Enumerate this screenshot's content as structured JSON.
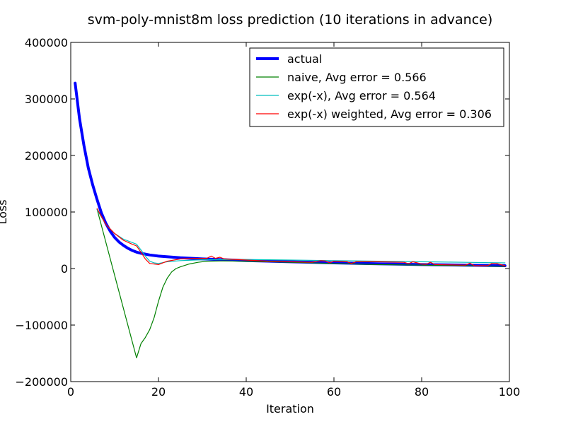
{
  "chart_data": {
    "type": "line",
    "title": "svm-poly-mnist8m loss prediction (10 iterations in advance)",
    "xlabel": "Iteration",
    "ylabel": "Loss",
    "xlim": [
      0,
      100
    ],
    "ylim": [
      -200000,
      400000
    ],
    "x_ticks": [
      0,
      20,
      40,
      60,
      80,
      100
    ],
    "y_ticks": [
      -200000,
      -100000,
      0,
      100000,
      200000,
      300000,
      400000
    ],
    "x_tick_labels": [
      "0",
      "20",
      "40",
      "60",
      "80",
      "100"
    ],
    "y_tick_labels": [
      "−200000",
      "−100000",
      "0",
      "100000",
      "200000",
      "300000",
      "400000"
    ],
    "grid": false,
    "legend_position": "top-right",
    "series": [
      {
        "name": "actual",
        "color": "#0000ff",
        "x": [
          1,
          2,
          3,
          4,
          5,
          6,
          7,
          8,
          9,
          10,
          11,
          12,
          13,
          14,
          15,
          16,
          18,
          20,
          25,
          30,
          40,
          50,
          60,
          70,
          80,
          90,
          99
        ],
        "y": [
          328000,
          265000,
          218000,
          178000,
          148000,
          122000,
          98000,
          80000,
          66000,
          55000,
          47000,
          41000,
          36000,
          32000,
          29000,
          27000,
          24000,
          22000,
          19000,
          17000,
          14000,
          12000,
          10000,
          8500,
          7000,
          6000,
          5000
        ]
      },
      {
        "name": "naive, Avg error = 0.566",
        "color": "#008000",
        "x": [
          6,
          15,
          16,
          17,
          18,
          19,
          20,
          21,
          22,
          23,
          24,
          25,
          27,
          29,
          31,
          35,
          40,
          50,
          60,
          70,
          80,
          90,
          99
        ],
        "y": [
          105000,
          -158000,
          -133000,
          -122000,
          -108000,
          -87000,
          -58000,
          -33000,
          -17000,
          -6000,
          0,
          3000,
          8000,
          11000,
          13000,
          13500,
          13000,
          11000,
          9000,
          7000,
          6000,
          5000,
          4000
        ]
      },
      {
        "name": "exp(-x), Avg error = 0.564",
        "color": "#00bfbf",
        "x": [
          6,
          8,
          10,
          12,
          14,
          15,
          16,
          17,
          18,
          19,
          20,
          22,
          25,
          30,
          40,
          50,
          60,
          70,
          80,
          90,
          99
        ],
        "y": [
          104000,
          78000,
          62000,
          52000,
          46000,
          43000,
          33000,
          22000,
          13000,
          10000,
          9000,
          12000,
          14000,
          15500,
          16000,
          15000,
          14000,
          13000,
          12000,
          11000,
          10000
        ]
      },
      {
        "name": "exp(-x) weighted, Avg error = 0.306",
        "color": "#ff0000",
        "x": [
          6,
          8,
          10,
          12,
          14,
          15,
          16,
          17,
          18,
          20,
          22,
          25,
          28,
          31,
          32,
          33,
          34,
          35,
          40,
          45,
          50,
          55,
          57,
          58,
          59,
          60,
          63,
          64,
          65,
          70,
          76,
          77,
          78,
          79,
          80,
          81,
          82,
          83,
          90,
          91,
          92,
          95,
          96,
          97,
          99
        ],
        "y": [
          106000,
          78000,
          62000,
          50000,
          43000,
          40000,
          29000,
          17000,
          9000,
          7000,
          13000,
          17000,
          18000,
          18000,
          22000,
          18000,
          20000,
          17000,
          15000,
          13000,
          12000,
          11000,
          14000,
          13500,
          10000,
          13000,
          12000,
          9000,
          12000,
          12000,
          11000,
          8500,
          12000,
          10000,
          8000,
          7500,
          11000,
          7000,
          6000,
          9500,
          5000,
          5000,
          9000,
          9000,
          5000
        ]
      }
    ]
  }
}
